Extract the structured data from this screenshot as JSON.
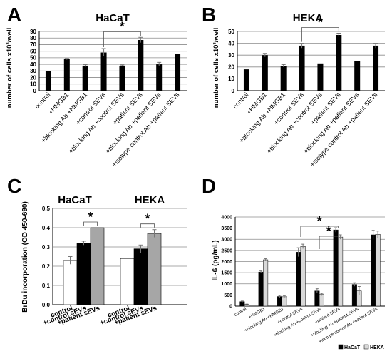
{
  "panels": [
    {
      "letter": "A",
      "chart_data": {
        "type": "bar",
        "title": "HaCaT",
        "ylabel": "number of cells x10³/well",
        "ylim": [
          0,
          90
        ],
        "yticks": [
          0,
          10,
          20,
          30,
          40,
          50,
          60,
          70,
          80,
          90
        ],
        "grid": true,
        "categories": [
          "control",
          "+HMGB1",
          "+blocking Ab +HMGB1",
          "+control SEVs",
          "+blocking Ab +control SEVs",
          "+patient SEVs",
          "+blocking Ab +patient SEVs",
          "+isotype control Ab +patient SEVs"
        ],
        "series": [
          {
            "values": [
              30,
              48,
              38,
              58,
              38,
              77,
              40,
              56
            ],
            "errors": [
              0,
              1,
              1.5,
              6,
              1,
              4,
              3,
              0
            ]
          }
        ],
        "annotations": [
          {
            "text": "*",
            "from": 3,
            "to": 5
          }
        ]
      }
    },
    {
      "letter": "B",
      "chart_data": {
        "type": "bar",
        "title": "HEKA",
        "ylabel": "number of cells x10³/well",
        "ylim": [
          0,
          50
        ],
        "yticks": [
          0,
          10,
          20,
          30,
          40,
          50
        ],
        "grid": true,
        "categories": [
          "control",
          "+HMGB1",
          "+blocking Ab +HMGB1",
          "+control SEVs",
          "+blocking Ab +control SEVs",
          "+patient SEVs",
          "+blocking Ab +patient SEVs",
          "+isotype control Ab +patient SEVs"
        ],
        "series": [
          {
            "values": [
              18,
              30,
              21,
              38,
              23,
              47,
              25,
              38
            ],
            "errors": [
              0,
              1.5,
              1,
              2,
              0,
              1.5,
              0,
              2
            ]
          }
        ],
        "annotations": [
          {
            "text": "*",
            "from": 3,
            "to": 5
          }
        ]
      }
    },
    {
      "letter": "C",
      "chart_data": {
        "type": "bar",
        "ylabel": "BrDu incorporation (OD 450-690)",
        "ylim": [
          0,
          0.5
        ],
        "yticks": [
          0,
          0.1,
          0.2,
          0.3,
          0.4,
          0.5
        ],
        "grid": true,
        "groups": [
          "HaCaT",
          "HEKA"
        ],
        "categories": [
          "control",
          "+control sEVs",
          "+patient sEVs"
        ],
        "colors": [
          "#ffffff",
          "#000000",
          "#a6a6a6"
        ],
        "series": [
          {
            "group": "HaCaT",
            "values": [
              0.23,
              0.32,
              0.4
            ],
            "errors": [
              0.02,
              0.01,
              0
            ]
          },
          {
            "group": "HEKA",
            "values": [
              0.24,
              0.29,
              0.37
            ],
            "errors": [
              0,
              0.02,
              0.02
            ]
          }
        ],
        "annotations": [
          {
            "text": "*",
            "group": "HaCaT",
            "from": 1,
            "to": 2
          },
          {
            "text": "*",
            "group": "HEKA",
            "from": 1,
            "to": 2
          }
        ]
      }
    },
    {
      "letter": "D",
      "chart_data": {
        "type": "bar",
        "ylabel": "IL-6 (pg/mL)",
        "ylim": [
          0,
          4000
        ],
        "yticks": [
          0,
          500,
          1000,
          1500,
          2000,
          2500,
          3000,
          3500,
          4000
        ],
        "grid": true,
        "legend_position": "bottom-right",
        "categories": [
          "control",
          "+HMGB1",
          "+blocking Ab +HMGB1",
          "+control SEVs",
          "+blocking Ab +control SEVs",
          "+patient SEVs",
          "+blocking Ab +patient SEVs",
          "+isotype control Ab +patient SEVs"
        ],
        "series": [
          {
            "name": "HaCaT",
            "color": "#000000",
            "values": [
              200,
              1530,
              430,
              2420,
              680,
              3420,
              970,
              3200
            ],
            "errors": [
              30,
              50,
              50,
              200,
              100,
              100,
              80,
              200
            ]
          },
          {
            "name": "HEKA",
            "color": "#d9d9d9",
            "values": [
              70,
              2080,
              420,
              2680,
              520,
              3100,
              680,
              3220
            ],
            "errors": [
              20,
              50,
              50,
              100,
              50,
              100,
              200,
              150
            ]
          }
        ],
        "annotations": [
          {
            "text": "*",
            "from": 3,
            "to": 5,
            "level": 1
          },
          {
            "text": "*",
            "from": 4,
            "to": 5,
            "level": 2
          }
        ]
      }
    }
  ]
}
